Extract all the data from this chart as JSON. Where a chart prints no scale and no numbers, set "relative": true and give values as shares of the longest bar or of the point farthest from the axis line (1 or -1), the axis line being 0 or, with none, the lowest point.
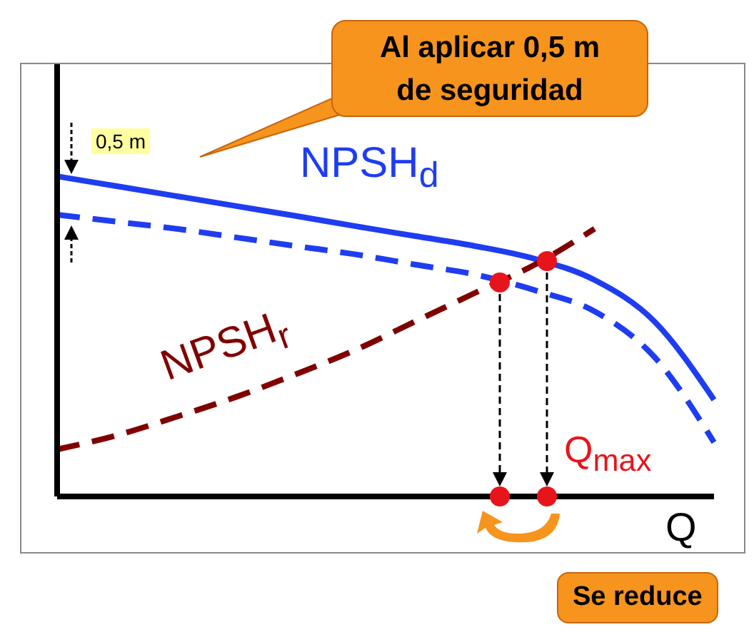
{
  "chart_data": {
    "type": "line",
    "relative": true,
    "xlabel": "Q",
    "categories": [
      null,
      null,
      null,
      null,
      null,
      null,
      null,
      null,
      null,
      null,
      null,
      null
    ],
    "series": [
      {
        "name": "NPSH$_{d}$",
        "color": "#1f3df0",
        "line_style": "solid",
        "values": [
          1,
          0.969,
          0.938,
          0.907,
          0.876,
          0.844,
          0.813,
          0.782,
          0.742,
          0.676,
          0.547,
          0.302
        ]
      },
      {
        "color": "#1f3df0",
        "line_style": "dashed",
        "values": [
          0.88,
          0.858,
          0.836,
          0.809,
          0.782,
          0.756,
          0.724,
          0.693,
          0.644,
          0.578,
          0.436,
          0.169
        ]
      },
      {
        "name": "NPSH$_{r}$",
        "color": "#800000",
        "line_style": "dashed",
        "values": [
          0.147,
          0.191,
          0.249,
          0.311,
          0.382,
          0.458,
          0.547,
          0.636,
          0.724,
          0.836,
          null,
          null
        ]
      }
    ],
    "annotations": [
      "Al aplicar 0,5 m de seguridad",
      "0,5 m",
      "Q$_{max}$",
      "Se reduce"
    ],
    "marker": "none"
  }
}
